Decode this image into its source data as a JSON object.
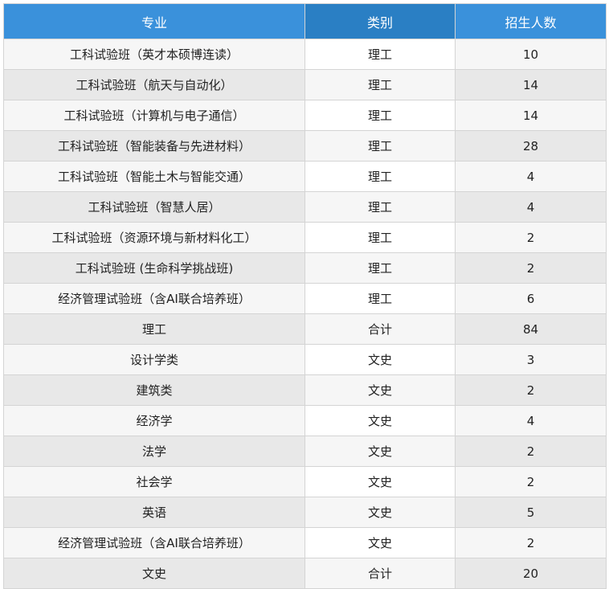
{
  "header": {
    "major": "专业",
    "category": "类别",
    "quota": "招生人数"
  },
  "rows": [
    {
      "major": "工科试验班（英才本硕博连读）",
      "category": "理工",
      "quota": "10"
    },
    {
      "major": "工科试验班（航天与自动化）",
      "category": "理工",
      "quota": "14"
    },
    {
      "major": "工科试验班（计算机与电子通信）",
      "category": "理工",
      "quota": "14"
    },
    {
      "major": "工科试验班（智能装备与先进材料）",
      "category": "理工",
      "quota": "28"
    },
    {
      "major": "工科试验班（智能土木与智能交通）",
      "category": "理工",
      "quota": "4"
    },
    {
      "major": "工科试验班（智慧人居）",
      "category": "理工",
      "quota": "4"
    },
    {
      "major": "工科试验班（资源环境与新材料化工）",
      "category": "理工",
      "quota": "2"
    },
    {
      "major": "工科试验班 (生命科学挑战班)",
      "category": "理工",
      "quota": "2"
    },
    {
      "major": "经济管理试验班（含AI联合培养班）",
      "category": "理工",
      "quota": "6"
    },
    {
      "major": "理工",
      "category": "合计",
      "quota": "84"
    },
    {
      "major": "设计学类",
      "category": "文史",
      "quota": "3"
    },
    {
      "major": "建筑类",
      "category": "文史",
      "quota": "2"
    },
    {
      "major": "经济学",
      "category": "文史",
      "quota": "4"
    },
    {
      "major": "法学",
      "category": "文史",
      "quota": "2"
    },
    {
      "major": "社会学",
      "category": "文史",
      "quota": "2"
    },
    {
      "major": "英语",
      "category": "文史",
      "quota": "5"
    },
    {
      "major": "经济管理试验班（含AI联合培养班）",
      "category": "文史",
      "quota": "2"
    },
    {
      "major": "文史",
      "category": "合计",
      "quota": "20"
    }
  ],
  "colors": {
    "header_blue": "#3a91db",
    "header_dark_blue": "#2a7fc4"
  }
}
